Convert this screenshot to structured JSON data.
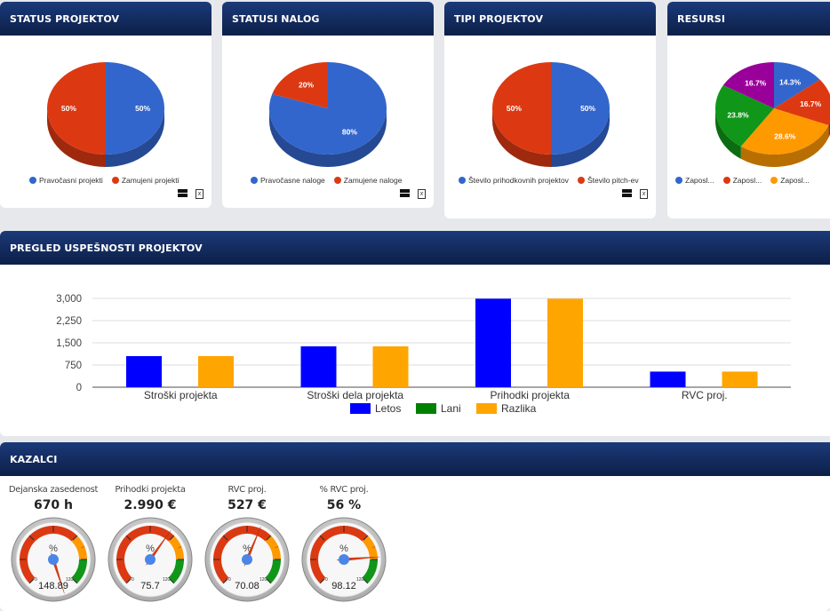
{
  "panels": {
    "status_projektov": {
      "title": "STATUS PROJEKTOV",
      "slices": [
        {
          "label": "Pravočasni projekti",
          "value": 50,
          "pct": "50%",
          "color": "#3366cc"
        },
        {
          "label": "Zamujeni projekti",
          "value": 50,
          "pct": "50%",
          "color": "#dc3912"
        }
      ]
    },
    "statusi_nalog": {
      "title": "STATUSI NALOG",
      "slices": [
        {
          "label": "Pravočasne naloge",
          "value": 80,
          "pct": "80%",
          "color": "#3366cc"
        },
        {
          "label": "Zamujene naloge",
          "value": 20,
          "pct": "20%",
          "color": "#dc3912"
        }
      ]
    },
    "tipi_projektov": {
      "title": "TIPI PROJEKTOV",
      "slices": [
        {
          "label": "Število prihodkovnih projektov",
          "value": 50,
          "pct": "50%",
          "color": "#3366cc"
        },
        {
          "label": "Število pitch-ev",
          "value": 50,
          "pct": "50%",
          "color": "#dc3912"
        }
      ]
    },
    "resursi": {
      "title": "RESURSI",
      "slices": [
        {
          "label": "Zaposl...",
          "value": 14.3,
          "pct": "14.3%",
          "color": "#3366cc"
        },
        {
          "label": "Zaposl...",
          "value": 16.7,
          "pct": "16.7%",
          "color": "#dc3912"
        },
        {
          "label": "Zaposl...",
          "value": 28.6,
          "pct": "28.6%",
          "color": "#ff9900"
        },
        {
          "label": "",
          "value": 23.8,
          "pct": "23.8%",
          "color": "#109618"
        },
        {
          "label": "",
          "value": 16.7,
          "pct": "16.7%",
          "color": "#990099"
        }
      ]
    },
    "pregled": {
      "title": "PREGLED USPEŠNOSTI PROJEKTOV"
    },
    "kazalci": {
      "title": "KAZALCI",
      "gauges": [
        {
          "title": "Dejanska zasedenost",
          "value": "670 h",
          "gauge_value": 148.89,
          "readout": "148.89"
        },
        {
          "title": "Prihodki projekta",
          "value": "2.990 €",
          "gauge_value": 75.7,
          "readout": "75.7"
        },
        {
          "title": "RVC proj.",
          "value": "527 €",
          "gauge_value": 70.08,
          "readout": "70.08"
        },
        {
          "title": "% RVC proj.",
          "value": "56 %",
          "gauge_value": 98.12,
          "readout": "98.12"
        }
      ],
      "gauge_unit": "%",
      "gauge_min_label": "0",
      "gauge_max_label": "120",
      "gauge_min": 0,
      "gauge_max": 120
    }
  },
  "chart_data": {
    "type": "bar",
    "title": "PREGLED USPEŠNOSTI PROJEKTOV",
    "categories": [
      "Stroški projekta",
      "Stroški dela projekta",
      "Prihodki projekta",
      "RVC proj."
    ],
    "series": [
      {
        "name": "Letos",
        "color": "#0000ff",
        "values": [
          1050,
          1380,
          2990,
          527
        ]
      },
      {
        "name": "Lani",
        "color": "#008000",
        "values": [
          0,
          0,
          0,
          0
        ]
      },
      {
        "name": "Razlika",
        "color": "#ffa500",
        "values": [
          1050,
          1380,
          2990,
          527
        ]
      }
    ],
    "yticks": [
      "0",
      "750",
      "1,500",
      "2,250",
      "3,000"
    ],
    "ylim": [
      0,
      3000
    ],
    "xlabel": "",
    "ylabel": "",
    "grid": true,
    "legend": "bottom"
  },
  "export_icons": [
    "table-icon",
    "excel-export-icon"
  ]
}
